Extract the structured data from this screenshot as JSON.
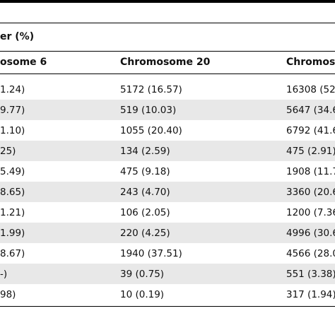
{
  "table": {
    "group_header": "er (%)",
    "columns": [
      "osome 6",
      "Chromosome 20",
      "Chromos"
    ],
    "rows": [
      [
        "1.24)",
        "5172 (16.57)",
        "16308 (52"
      ],
      [
        "9.77)",
        "519 (10.03)",
        "5647 (34.6"
      ],
      [
        "1.10)",
        "1055 (20.40)",
        "6792 (41.6"
      ],
      [
        "25)",
        "134 (2.59)",
        "475 (2.91)"
      ],
      [
        "5.49)",
        "475 (9.18)",
        "1908 (11.7"
      ],
      [
        "8.65)",
        "243 (4.70)",
        "3360 (20.6"
      ],
      [
        "1.21)",
        "106 (2.05)",
        "1200 (7.36"
      ],
      [
        "1.99)",
        "220 (4.25)",
        "4996 (30.6"
      ],
      [
        "8.67)",
        "1940 (37.51)",
        "4566 (28.0"
      ],
      [
        "-)",
        "39 (0.75)",
        "551 (3.38)"
      ],
      [
        "98)",
        "10 (0.19)",
        "317 (1.94)"
      ]
    ]
  }
}
